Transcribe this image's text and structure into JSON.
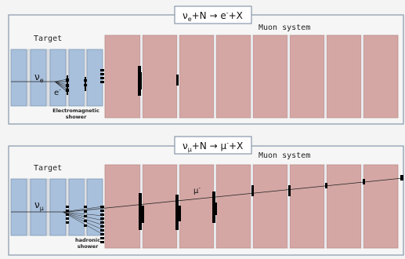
{
  "panels": [
    {
      "title_main": "ν",
      "title_sub": "e",
      "title_rest": "+N → e",
      "title_sup": "-",
      "title_end": "+X",
      "target_label": "Target",
      "muon_label": "Muon system",
      "nu_main": "ν",
      "nu_sub": "e",
      "particle_main": "e",
      "particle_sup": "-",
      "shower_line1": "Electromagnetic",
      "shower_line2": "shower"
    },
    {
      "title_main": "ν",
      "title_sub": "μ",
      "title_rest": "+N → μ",
      "title_sup": "-",
      "title_end": "+X",
      "target_label": "Target",
      "muon_label": "Muon system",
      "nu_main": "ν",
      "nu_sub": "μ",
      "particle_main": "μ",
      "particle_sup": "-",
      "shower_line1": "hadronic",
      "shower_line2": "shower"
    }
  ],
  "colors": {
    "target_block": "#a8c0dc",
    "muon_block": "#d4a7a4",
    "frame": "#8896ab",
    "hit": "#000000"
  }
}
